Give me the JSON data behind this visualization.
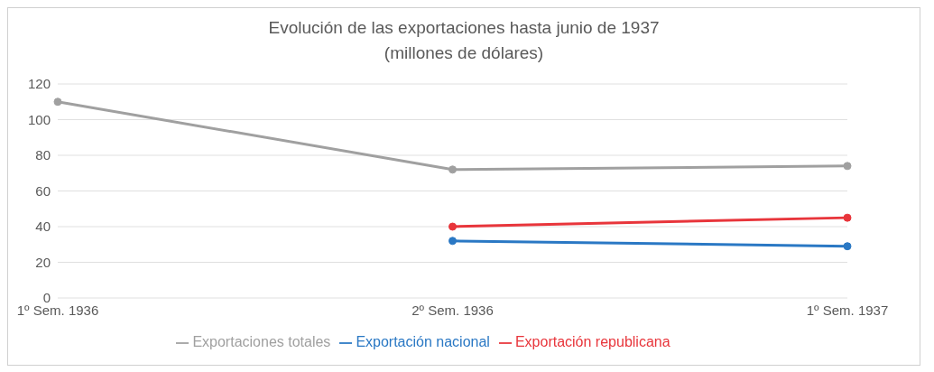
{
  "chart_data": {
    "type": "line",
    "title": "Evolución de las exportaciones hasta junio de 1937",
    "subtitle": "(millones de dólares)",
    "categories": [
      "1º Sem. 1936",
      "2º Sem. 1936",
      "1º Sem. 1937"
    ],
    "series": [
      {
        "name": "Exportación republicana",
        "color": "#e8353b",
        "values": [
          null,
          40,
          45
        ]
      },
      {
        "name": "Exportación nacional",
        "color": "#2a78c4",
        "values": [
          null,
          32,
          29
        ]
      },
      {
        "name": "Exportaciones totales",
        "color": "#a0a0a0",
        "values": [
          110,
          72,
          74
        ]
      }
    ],
    "ylim": [
      0,
      120
    ],
    "yticks": [
      0,
      20,
      40,
      60,
      80,
      100,
      120
    ],
    "grid": "y",
    "legend": "bottom",
    "marker": "circle",
    "line_style": "solid"
  }
}
